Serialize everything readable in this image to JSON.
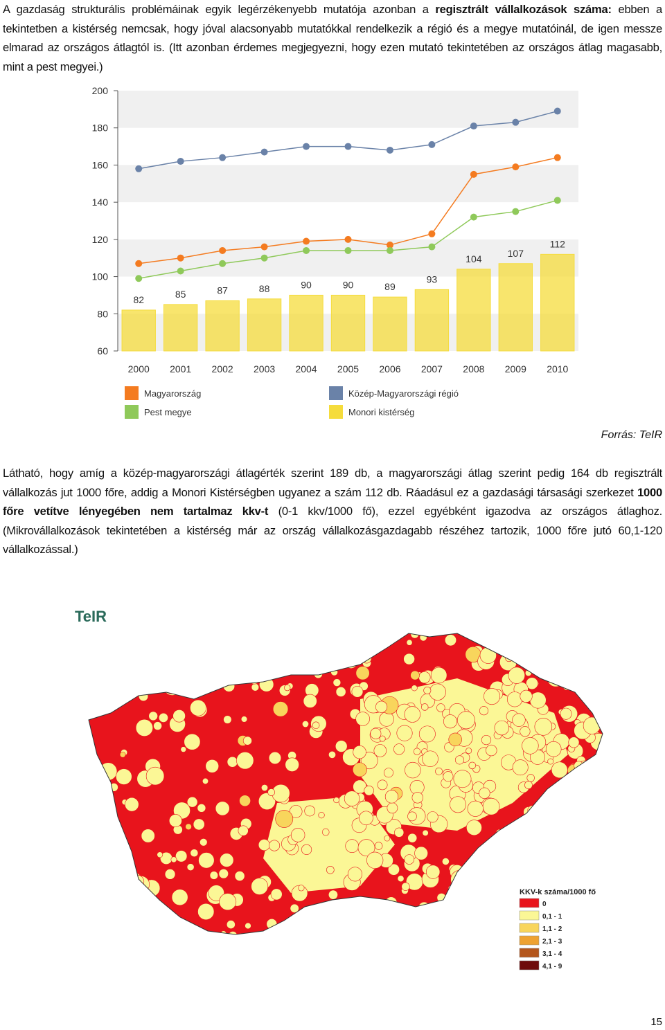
{
  "paragraph_1": {
    "before": "A gazdaság strukturális problémáinak egyik legérzékenyebb mutatója azonban a ",
    "bold": "regisztrált vállalkozások száma:",
    "after": " ebben a tekintetben a kistérség nemcsak, hogy jóval alacsonyabb mutatókkal rendelkezik a régió és a megye mutatóinál, de igen messze elmarad az országos átlagtól is. (Itt azonban érdemes megjegyezni, hogy ezen mutató tekintetében az országos átlag magasabb, mint a pest megyei.)"
  },
  "chart_data": {
    "type": "bar",
    "categories": [
      "2000",
      "2001",
      "2002",
      "2003",
      "2004",
      "2005",
      "2006",
      "2007",
      "2008",
      "2009",
      "2010"
    ],
    "series": [
      {
        "name": "Magyarország",
        "type": "line",
        "color": "#f47b20",
        "values": [
          107,
          110,
          114,
          116,
          119,
          120,
          117,
          123,
          155,
          159,
          164
        ]
      },
      {
        "name": "Közép-Magyarországi régió",
        "type": "line",
        "color": "#6a82a8",
        "values": [
          158,
          162,
          164,
          167,
          170,
          170,
          168,
          171,
          181,
          183,
          189
        ]
      },
      {
        "name": "Pest megye",
        "type": "line",
        "color": "#8fc95a",
        "values": [
          99,
          103,
          107,
          110,
          114,
          114,
          114,
          116,
          132,
          135,
          141
        ]
      },
      {
        "name": "Monori kistérség",
        "type": "bar",
        "color": "#f5dc3c",
        "values": [
          82,
          85,
          87,
          88,
          90,
          90,
          89,
          93,
          104,
          107,
          112
        ]
      }
    ],
    "ylim": [
      60,
      200
    ],
    "yticks": [
      60,
      80,
      100,
      120,
      140,
      160,
      180,
      200
    ],
    "grid": "bands"
  },
  "source": "Forrás: TeIR",
  "paragraph_2": {
    "before": "Látható, hogy amíg a közép-magyarországi átlagérték szerint 189 db, a magyarországi átlag szerint pedig 164 db regisztrált vállalkozás jut 1000 főre, addig a Monori Kistérségben ugyanez a szám 112 db. Ráadásul ez a gazdasági társasági szerkezet ",
    "bold": "1000 főre vetítve lényegében nem tartalmaz kkv-t",
    "after": " (0-1 kkv/1000 fő), ezzel egyébként igazodva az országos átlaghoz. (Mikrovállalkozások tekintetében a kistérség már az ország vállalkozásgazdagabb részéhez tartozik, 1000 főre jutó 60,1-120 vállalkozással.)"
  },
  "map": {
    "logo": "TeIR",
    "legend_title": "KKV-k száma/1000 fő",
    "legend": [
      {
        "label": "0",
        "color": "#e8141c"
      },
      {
        "label": "0,1 - 1",
        "color": "#fbf796"
      },
      {
        "label": "1,1 - 2",
        "color": "#f8d55c"
      },
      {
        "label": "2,1 - 3",
        "color": "#eea232"
      },
      {
        "label": "3,1 - 4",
        "color": "#b4561c"
      },
      {
        "label": "4,1 - 9",
        "color": "#6e0c0c"
      }
    ]
  },
  "page_number": "15"
}
